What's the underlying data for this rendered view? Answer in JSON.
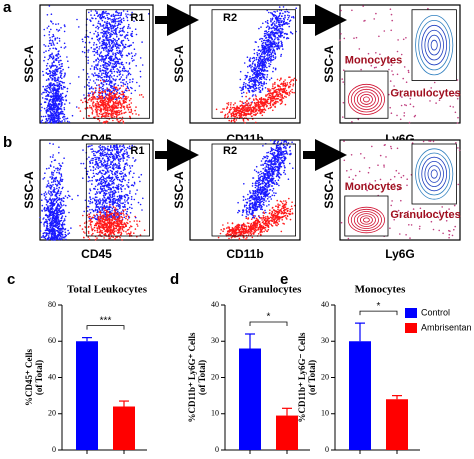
{
  "flow": {
    "rows": [
      {
        "letter": "a",
        "plots": [
          {
            "ylabel": "SSC-A",
            "xlabel": "CD45",
            "gate": "R1"
          },
          {
            "ylabel": "SSC-A",
            "xlabel": "CD11b",
            "gate": "R2"
          },
          {
            "ylabel": "SSC-A",
            "xlabel": "Ly6G",
            "gates": [
              "Monocytes",
              "Granulocytes"
            ]
          }
        ]
      },
      {
        "letter": "b",
        "plots": [
          {
            "ylabel": "SSC-A",
            "xlabel": "CD45",
            "gate": "R1"
          },
          {
            "ylabel": "SSC-A",
            "xlabel": "CD11b",
            "gate": "R2"
          },
          {
            "ylabel": "SSC-A",
            "xlabel": "Ly6G",
            "gates": [
              "Monocytes",
              "Granulocytes"
            ]
          }
        ]
      }
    ]
  },
  "legend": [
    {
      "name": "Control",
      "color": "#0000ff"
    },
    {
      "name": "Ambrisentan",
      "color": "#ff0000"
    }
  ],
  "chart_data": [
    {
      "type": "bar",
      "panel": "c",
      "title": "Total Leukocytes",
      "ylabel": [
        "%CD45⁺ Cells",
        "(of Total)"
      ],
      "values": [
        60,
        24
      ],
      "errors": [
        2,
        3
      ],
      "colors": [
        "#0000ff",
        "#ff0000"
      ],
      "significance": "***",
      "ylim": [
        0,
        80
      ],
      "yticks": [
        0,
        20,
        40,
        60,
        80
      ]
    },
    {
      "type": "bar",
      "panel": "d",
      "title": "Granulocytes",
      "ylabel": [
        "%CD11b⁺ Ly6G⁺ Cells",
        "(of Total)"
      ],
      "values": [
        28,
        9.5
      ],
      "errors": [
        4,
        2
      ],
      "colors": [
        "#0000ff",
        "#ff0000"
      ],
      "significance": "*",
      "ylim": [
        0,
        40
      ],
      "yticks": [
        0,
        10,
        20,
        30,
        40
      ]
    },
    {
      "type": "bar",
      "panel": "e",
      "title": "Monocytes",
      "ylabel": [
        "%CD11b⁺ Ly6G⁻ Cells",
        "(of Total)"
      ],
      "values": [
        30,
        14
      ],
      "errors": [
        5,
        1
      ],
      "colors": [
        "#0000ff",
        "#ff0000"
      ],
      "significance": "*",
      "ylim": [
        0,
        40
      ],
      "yticks": [
        0,
        10,
        20,
        30,
        40
      ]
    }
  ]
}
